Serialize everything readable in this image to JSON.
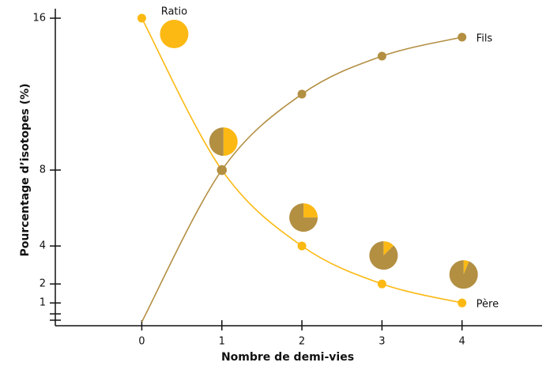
{
  "chart_data": {
    "type": "line",
    "x_label": "Nombre de demi-vies",
    "y_label": "Pourcentage d’isotopes (%)",
    "x": [
      0,
      1,
      2,
      3,
      4
    ],
    "series": [
      {
        "name": "Père",
        "color": "#fcb913",
        "values": [
          16,
          8,
          4,
          2,
          1
        ]
      },
      {
        "name": "Fils",
        "color": "#b38f42",
        "values": [
          0,
          8,
          12,
          14,
          15
        ]
      }
    ],
    "pie_label": "Ratio",
    "xlim": [
      -1.08,
      5.0
    ],
    "ylim": [
      -0.2,
      16.5
    ],
    "xticks": [
      0,
      1,
      2,
      3,
      4
    ],
    "yticks": [
      1,
      2,
      4,
      8,
      16
    ]
  }
}
